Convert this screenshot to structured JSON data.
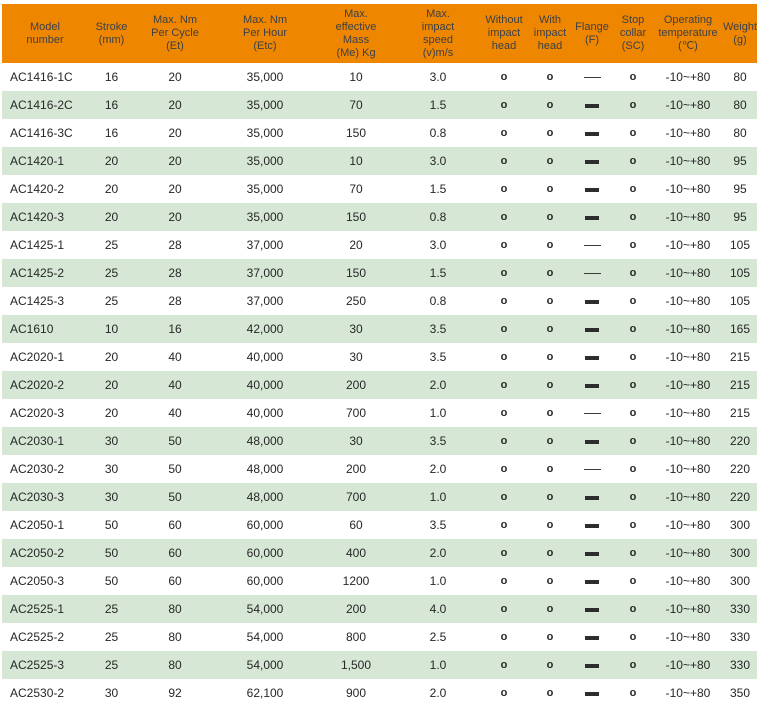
{
  "table": {
    "colors": {
      "header_bg": "#EF8600",
      "alt_row_bg": "#D6E8D5",
      "header_text": "#3B4149",
      "body_text": "#262626"
    },
    "columns": [
      {
        "key": "model",
        "label": "Model\nnumber"
      },
      {
        "key": "stroke",
        "label": "Stroke\n(mm)"
      },
      {
        "key": "et",
        "label": "Max. Nm\nPer Cycle\n(Et)"
      },
      {
        "key": "etc",
        "label": "Max. Nm\nPer Hour\n(Etc)"
      },
      {
        "key": "mass",
        "label": "Max.\neffective\nMass\n(Me) Kg"
      },
      {
        "key": "speed",
        "label": "Max.\nimpact\nspeed\n(v)m/s"
      },
      {
        "key": "without_head",
        "label": "Without\nimpact\nhead"
      },
      {
        "key": "with_head",
        "label": "With\nimpact\nhead"
      },
      {
        "key": "flange",
        "label": "Flange\n(F)"
      },
      {
        "key": "stop_collar",
        "label": "Stop\ncollar\n(SC)"
      },
      {
        "key": "temp",
        "label": "Operating\ntemperature\n(℃)"
      },
      {
        "key": "weight",
        "label": "Weight\n(g)"
      }
    ],
    "rows": [
      {
        "model": "AC1416-1C",
        "stroke": "16",
        "et": "20",
        "etc": "35,000",
        "mass": "10",
        "speed": "3.0",
        "without_head": "o",
        "with_head": "o",
        "flange": "—",
        "flange_style": "thin",
        "stop_collar": "o",
        "temp": "-10~+80",
        "weight": "80"
      },
      {
        "model": "AC1416-2C",
        "stroke": "16",
        "et": "20",
        "etc": "35,000",
        "mass": "70",
        "speed": "1.5",
        "without_head": "o",
        "with_head": "o",
        "flange": "—",
        "flange_style": "thick",
        "stop_collar": "o",
        "temp": "-10~+80",
        "weight": "80"
      },
      {
        "model": "AC1416-3C",
        "stroke": "16",
        "et": "20",
        "etc": "35,000",
        "mass": "150",
        "speed": "0.8",
        "without_head": "o",
        "with_head": "o",
        "flange": "—",
        "flange_style": "thick",
        "stop_collar": "o",
        "temp": "-10~+80",
        "weight": "80"
      },
      {
        "model": "AC1420-1",
        "stroke": "20",
        "et": "20",
        "etc": "35,000",
        "mass": "10",
        "speed": "3.0",
        "without_head": "o",
        "with_head": "o",
        "flange": "—",
        "flange_style": "thick",
        "stop_collar": "o",
        "temp": "-10~+80",
        "weight": "95"
      },
      {
        "model": "AC1420-2",
        "stroke": "20",
        "et": "20",
        "etc": "35,000",
        "mass": "70",
        "speed": "1.5",
        "without_head": "o",
        "with_head": "o",
        "flange": "—",
        "flange_style": "thick",
        "stop_collar": "o",
        "temp": "-10~+80",
        "weight": "95"
      },
      {
        "model": "AC1420-3",
        "stroke": "20",
        "et": "20",
        "etc": "35,000",
        "mass": "150",
        "speed": "0.8",
        "without_head": "o",
        "with_head": "o",
        "flange": "—",
        "flange_style": "thick",
        "stop_collar": "o",
        "temp": "-10~+80",
        "weight": "95"
      },
      {
        "model": "AC1425-1",
        "stroke": "25",
        "et": "28",
        "etc": "37,000",
        "mass": "20",
        "speed": "3.0",
        "without_head": "o",
        "with_head": "o",
        "flange": "—",
        "flange_style": "thin",
        "stop_collar": "o",
        "temp": "-10~+80",
        "weight": "105"
      },
      {
        "model": "AC1425-2",
        "stroke": "25",
        "et": "28",
        "etc": "37,000",
        "mass": "150",
        "speed": "1.5",
        "without_head": "o",
        "with_head": "o",
        "flange": "—",
        "flange_style": "thin",
        "stop_collar": "o",
        "temp": "-10~+80",
        "weight": "105"
      },
      {
        "model": "AC1425-3",
        "stroke": "25",
        "et": "28",
        "etc": "37,000",
        "mass": "250",
        "speed": "0.8",
        "without_head": "o",
        "with_head": "o",
        "flange": "—",
        "flange_style": "thick",
        "stop_collar": "o",
        "temp": "-10~+80",
        "weight": "105"
      },
      {
        "model": "AC1610",
        "stroke": "10",
        "et": "16",
        "etc": "42,000",
        "mass": "30",
        "speed": "3.5",
        "without_head": "o",
        "with_head": "o",
        "flange": "—",
        "flange_style": "thick",
        "stop_collar": "o",
        "temp": "-10~+80",
        "weight": "165"
      },
      {
        "model": "AC2020-1",
        "stroke": "20",
        "et": "40",
        "etc": "40,000",
        "mass": "30",
        "speed": "3.5",
        "without_head": "o",
        "with_head": "o",
        "flange": "—",
        "flange_style": "thick",
        "stop_collar": "o",
        "temp": "-10~+80",
        "weight": "215"
      },
      {
        "model": "AC2020-2",
        "stroke": "20",
        "et": "40",
        "etc": "40,000",
        "mass": "200",
        "speed": "2.0",
        "without_head": "o",
        "with_head": "o",
        "flange": "—",
        "flange_style": "thick",
        "stop_collar": "o",
        "temp": "-10~+80",
        "weight": "215"
      },
      {
        "model": "AC2020-3",
        "stroke": "20",
        "et": "40",
        "etc": "40,000",
        "mass": "700",
        "speed": "1.0",
        "without_head": "o",
        "with_head": "o",
        "flange": "—",
        "flange_style": "thin",
        "stop_collar": "o",
        "temp": "-10~+80",
        "weight": "215"
      },
      {
        "model": "AC2030-1",
        "stroke": "30",
        "et": "50",
        "etc": "48,000",
        "mass": "30",
        "speed": "3.5",
        "without_head": "o",
        "with_head": "o",
        "flange": "—",
        "flange_style": "thick",
        "stop_collar": "o",
        "temp": "-10~+80",
        "weight": "220"
      },
      {
        "model": "AC2030-2",
        "stroke": "30",
        "et": "50",
        "etc": "48,000",
        "mass": "200",
        "speed": "2.0",
        "without_head": "o",
        "with_head": "o",
        "flange": "—",
        "flange_style": "thin",
        "stop_collar": "o",
        "temp": "-10~+80",
        "weight": "220"
      },
      {
        "model": "AC2030-3",
        "stroke": "30",
        "et": "50",
        "etc": "48,000",
        "mass": "700",
        "speed": "1.0",
        "without_head": "o",
        "with_head": "o",
        "flange": "—",
        "flange_style": "thick",
        "stop_collar": "o",
        "temp": "-10~+80",
        "weight": "220"
      },
      {
        "model": "AC2050-1",
        "stroke": "50",
        "et": "60",
        "etc": "60,000",
        "mass": "60",
        "speed": "3.5",
        "without_head": "o",
        "with_head": "o",
        "flange": "—",
        "flange_style": "thick",
        "stop_collar": "o",
        "temp": "-10~+80",
        "weight": "300"
      },
      {
        "model": "AC2050-2",
        "stroke": "50",
        "et": "60",
        "etc": "60,000",
        "mass": "400",
        "speed": "2.0",
        "without_head": "o",
        "with_head": "o",
        "flange": "—",
        "flange_style": "thick",
        "stop_collar": "o",
        "temp": "-10~+80",
        "weight": "300"
      },
      {
        "model": "AC2050-3",
        "stroke": "50",
        "et": "60",
        "etc": "60,000",
        "mass": "1200",
        "speed": "1.0",
        "without_head": "o",
        "with_head": "o",
        "flange": "—",
        "flange_style": "thick",
        "stop_collar": "o",
        "temp": "-10~+80",
        "weight": "300"
      },
      {
        "model": "AC2525-1",
        "stroke": "25",
        "et": "80",
        "etc": "54,000",
        "mass": "200",
        "speed": "4.0",
        "without_head": "o",
        "with_head": "o",
        "flange": "—",
        "flange_style": "thick",
        "stop_collar": "o",
        "temp": "-10~+80",
        "weight": "330"
      },
      {
        "model": "AC2525-2",
        "stroke": "25",
        "et": "80",
        "etc": "54,000",
        "mass": "800",
        "speed": "2.5",
        "without_head": "o",
        "with_head": "o",
        "flange": "—",
        "flange_style": "thick",
        "stop_collar": "o",
        "temp": "-10~+80",
        "weight": "330"
      },
      {
        "model": "AC2525-3",
        "stroke": "25",
        "et": "80",
        "etc": "54,000",
        "mass": "1,500",
        "speed": "1.0",
        "without_head": "o",
        "with_head": "o",
        "flange": "—",
        "flange_style": "thick",
        "stop_collar": "o",
        "temp": "-10~+80",
        "weight": "330"
      },
      {
        "model": "AC2530-2",
        "stroke": "30",
        "et": "92",
        "etc": "62,100",
        "mass": "900",
        "speed": "2.0",
        "without_head": "o",
        "with_head": "o",
        "flange": "—",
        "flange_style": "thick",
        "stop_collar": "o",
        "temp": "-10~+80",
        "weight": "350"
      }
    ]
  }
}
